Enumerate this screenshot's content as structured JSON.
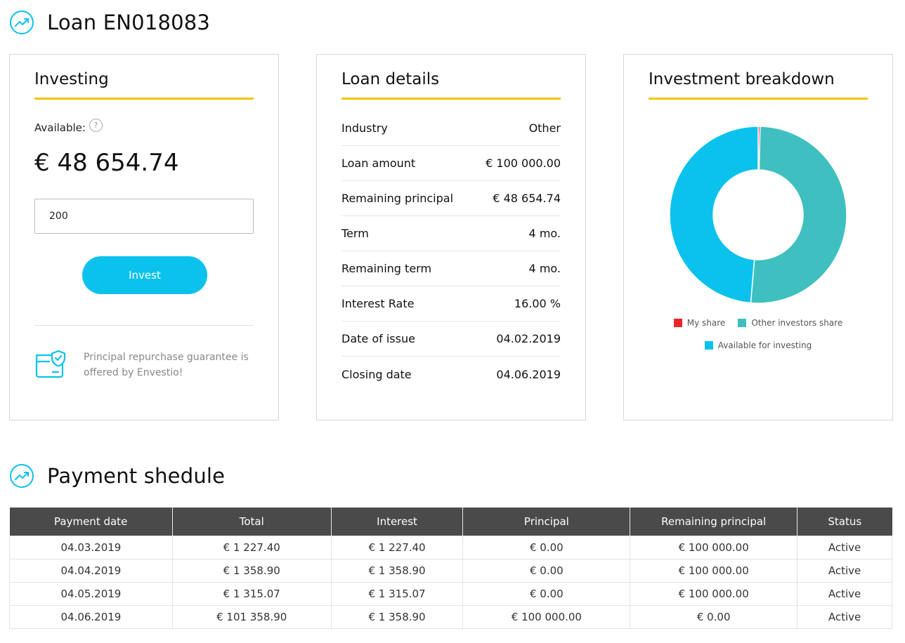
{
  "loan": {
    "title": "Loan EN018083"
  },
  "investing": {
    "title": "Investing",
    "available_label": "Available:",
    "help_glyph": "?",
    "available_value": "€ 48 654.74",
    "amount_value": "200",
    "invest_label": "Invest",
    "guarantee_text": "Principal repurchase guarantee is offered by Envestio!"
  },
  "details": {
    "title": "Loan details",
    "rows": [
      {
        "label": "Industry",
        "value": "Other"
      },
      {
        "label": "Loan amount",
        "value": "€ 100 000.00"
      },
      {
        "label": "Remaining principal",
        "value": "€ 48 654.74"
      },
      {
        "label": "Term",
        "value": "4 mo."
      },
      {
        "label": "Remaining term",
        "value": "4 mo."
      },
      {
        "label": "Interest Rate",
        "value": "16.00 %"
      },
      {
        "label": "Date of issue",
        "value": "04.02.2019"
      },
      {
        "label": "Closing date",
        "value": "04.06.2019"
      }
    ]
  },
  "breakdown": {
    "title": "Investment breakdown",
    "legend": [
      "My share",
      "Other investors share",
      "Available for investing"
    ]
  },
  "chart_data": {
    "type": "pie",
    "categories": [
      "My share",
      "Other investors share",
      "Available for investing"
    ],
    "values": [
      0.35,
      50.99,
      48.66
    ],
    "colors": [
      "#e8262a",
      "#3fbfbf",
      "#0bc2ec"
    ],
    "legend_position": "bottom"
  },
  "schedule": {
    "title": "Payment shedule",
    "headers": [
      "Payment date",
      "Total",
      "Interest",
      "Principal",
      "Remaining principal",
      "Status"
    ],
    "rows": [
      [
        "04.03.2019",
        "€ 1 227.40",
        "€ 1 227.40",
        "€ 0.00",
        "€ 100 000.00",
        "Active"
      ],
      [
        "04.04.2019",
        "€ 1 358.90",
        "€ 1 358.90",
        "€ 0.00",
        "€ 100 000.00",
        "Active"
      ],
      [
        "04.05.2019",
        "€ 1 315.07",
        "€ 1 315.07",
        "€ 0.00",
        "€ 100 000.00",
        "Active"
      ],
      [
        "04.06.2019",
        "€ 101 358.90",
        "€ 1 358.90",
        "€ 100 000.00",
        "€ 0.00",
        "Active"
      ]
    ]
  },
  "colors": {
    "accent": "#0bc2ec",
    "underline": "#f5c400",
    "header_bg": "#4a4a4a"
  }
}
